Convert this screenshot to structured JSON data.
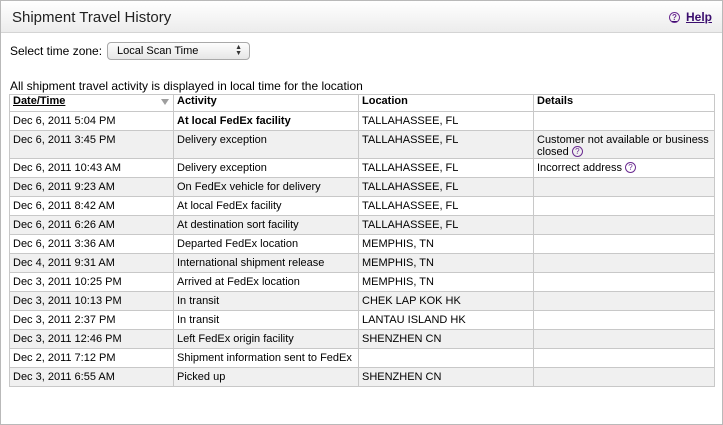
{
  "header": {
    "title": "Shipment Travel History",
    "help_label": "Help"
  },
  "timezone": {
    "label": "Select time zone:",
    "selected": "Local Scan Time"
  },
  "info_text": "All shipment travel activity is displayed in local time for the location",
  "table": {
    "columns": [
      "Date/Time",
      "Activity",
      "Location",
      "Details"
    ],
    "rows": [
      {
        "datetime": "Dec 6, 2011 5:04 PM",
        "activity": "At local FedEx facility",
        "location": "TALLAHASSEE, FL",
        "details": ""
      },
      {
        "datetime": "Dec 6, 2011 3:45 PM",
        "activity": "Delivery exception",
        "location": "TALLAHASSEE, FL",
        "details": "Customer not available or business closed"
      },
      {
        "datetime": "Dec 6, 2011 10:43 AM",
        "activity": "Delivery exception",
        "location": "TALLAHASSEE, FL",
        "details": "Incorrect address"
      },
      {
        "datetime": "Dec 6, 2011 9:23 AM",
        "activity": "On FedEx vehicle for delivery",
        "location": "TALLAHASSEE, FL",
        "details": ""
      },
      {
        "datetime": "Dec 6, 2011 8:42 AM",
        "activity": "At local FedEx facility",
        "location": "TALLAHASSEE, FL",
        "details": ""
      },
      {
        "datetime": "Dec 6, 2011 6:26 AM",
        "activity": "At destination sort facility",
        "location": "TALLAHASSEE, FL",
        "details": ""
      },
      {
        "datetime": "Dec 6, 2011 3:36 AM",
        "activity": "Departed FedEx location",
        "location": "MEMPHIS, TN",
        "details": ""
      },
      {
        "datetime": "Dec 4, 2011 9:31 AM",
        "activity": "International shipment release",
        "location": "MEMPHIS, TN",
        "details": ""
      },
      {
        "datetime": "Dec 3, 2011 10:25 PM",
        "activity": "Arrived at FedEx location",
        "location": "MEMPHIS, TN",
        "details": ""
      },
      {
        "datetime": "Dec 3, 2011 10:13 PM",
        "activity": "In transit",
        "location": "CHEK LAP KOK HK",
        "details": ""
      },
      {
        "datetime": "Dec 3, 2011 2:37 PM",
        "activity": "In transit",
        "location": "LANTAU ISLAND HK",
        "details": ""
      },
      {
        "datetime": "Dec 3, 2011 12:46 PM",
        "activity": "Left FedEx origin facility",
        "location": "SHENZHEN CN",
        "details": ""
      },
      {
        "datetime": "Dec 2, 2011 7:12 PM",
        "activity": "Shipment information sent to FedEx",
        "location": "",
        "details": ""
      },
      {
        "datetime": "Dec 3, 2011 6:55 AM",
        "activity": "Picked up",
        "location": "SHENZHEN CN",
        "details": ""
      }
    ]
  }
}
